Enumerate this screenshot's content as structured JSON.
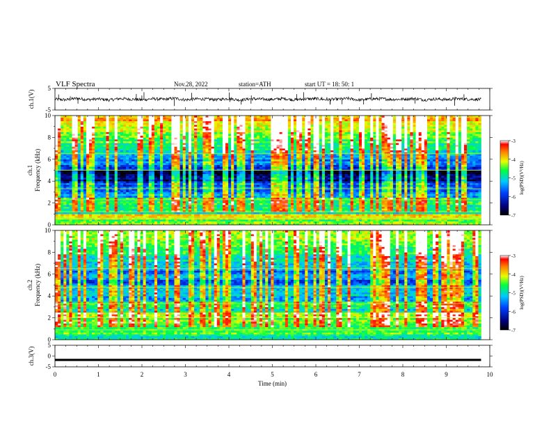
{
  "header": {
    "title": "VLF  Spectra",
    "date": "Nov.28, 2022",
    "station": "station=ATH",
    "start": "start  UT  =    18: 50: 1"
  },
  "chart_data": [
    {
      "type": "line",
      "panel": "ch1-waveform",
      "ylabel": "ch.1(V)",
      "ylim": [
        -5,
        5
      ],
      "yticks": [
        "5",
        "-5"
      ],
      "x": [
        0,
        0.25,
        0.5,
        0.75,
        1,
        1.25,
        1.5,
        1.75,
        2,
        2.25,
        2.5,
        2.75,
        3,
        3.25,
        3.5,
        3.75,
        4,
        4.25,
        4.5,
        4.75,
        5,
        5.25,
        5.5,
        5.75,
        6,
        6.25,
        6.5,
        6.75,
        7,
        7.25,
        7.5,
        7.75,
        8,
        8.25,
        8.5,
        8.75,
        9,
        9.25,
        9.5,
        9.8
      ],
      "series": [
        {
          "values": [
            0,
            -0.3,
            0.4,
            -0.2,
            0.1,
            -0.4,
            0.3,
            0,
            -0.3,
            0.2,
            -0.1,
            0.4,
            -0.3,
            0.1,
            0,
            -0.2,
            0.3,
            -0.4,
            0.2,
            0,
            -0.1,
            0.3,
            -0.3,
            0.1,
            0.2,
            -0.2,
            0,
            0.3,
            -0.4,
            0.1,
            0.2,
            -0.1,
            0,
            0.3,
            -0.3,
            0.1,
            -0.2,
            0.2,
            0,
            -0.1
          ]
        }
      ]
    },
    {
      "type": "heatmap",
      "panel": "ch1-spectrogram",
      "ylabel": "ch.1\nFrequency  (kHz)",
      "ylim": [
        0,
        10
      ],
      "yticks": [
        "0",
        "2",
        "4",
        "6",
        "8",
        "10"
      ],
      "xlim": [
        0,
        9.8
      ],
      "colorbar": {
        "label": "log(PSD)(V²/Hz)",
        "range": [
          -7,
          -3
        ],
        "ticks": [
          "-3",
          "-4",
          "-5",
          "-6",
          "-7"
        ]
      },
      "freq_bands_khz": [
        0,
        0.5,
        1,
        1.5,
        2,
        2.5,
        3,
        3.5,
        4,
        4.5,
        5,
        5.5,
        6,
        6.5,
        7,
        7.5,
        8,
        8.5,
        9,
        9.5
      ],
      "log_psd_profile": [
        -4.6,
        -4.2,
        -5.0,
        -5.0,
        -4.8,
        -5.6,
        -5.9,
        -6.1,
        -6.6,
        -6.8,
        -6.2,
        -5.8,
        -5.6,
        -5.2,
        -5.0,
        -4.8,
        -4.6,
        -4.4,
        -4.1,
        -3.9
      ],
      "lines_khz": [
        0.6,
        1.2,
        2.3,
        3.3,
        5.0,
        6.5
      ]
    },
    {
      "type": "heatmap",
      "panel": "ch2-spectrogram",
      "ylabel": "ch.2\nFrequency  (kHz)",
      "ylim": [
        0,
        10
      ],
      "yticks": [
        "0",
        "2",
        "4",
        "6",
        "8",
        "10"
      ],
      "xlim": [
        0,
        9.8
      ],
      "colorbar": {
        "label": "log(PSD)(V²/Hz)",
        "range": [
          -7,
          -3
        ],
        "ticks": [
          "-3",
          "-4",
          "-5",
          "-6",
          "-7"
        ]
      },
      "freq_bands_khz": [
        0,
        0.5,
        1,
        1.5,
        2,
        2.5,
        3,
        3.5,
        4,
        4.5,
        5,
        5.5,
        6,
        6.5,
        7,
        7.5,
        8,
        8.5,
        9,
        9.5
      ],
      "log_psd_profile": [
        -5.0,
        -4.8,
        -4.9,
        -4.5,
        -4.3,
        -5.2,
        -4.7,
        -5.5,
        -5.2,
        -5.3,
        -5.9,
        -5.6,
        -5.8,
        -5.4,
        -5.2,
        -5.0,
        -4.9,
        -4.7,
        -4.5,
        -4.3
      ],
      "lines_khz": [
        0.9,
        2.0,
        3.3,
        4.8,
        6.5
      ]
    },
    {
      "type": "line",
      "panel": "ch3-waveform",
      "ylabel": "ch.3(V)",
      "ylim": [
        -5,
        5
      ],
      "yticks": [
        "5",
        "0",
        "-5"
      ],
      "x": [
        0,
        9.8
      ],
      "series": [
        {
          "values": [
            -1.8,
            -1.8
          ]
        }
      ]
    }
  ],
  "xaxis": {
    "label": "Time  (min)",
    "ticks": [
      "0",
      "1",
      "2",
      "3",
      "4",
      "5",
      "6",
      "7",
      "8",
      "9",
      "10"
    ],
    "range": [
      0,
      10
    ]
  }
}
